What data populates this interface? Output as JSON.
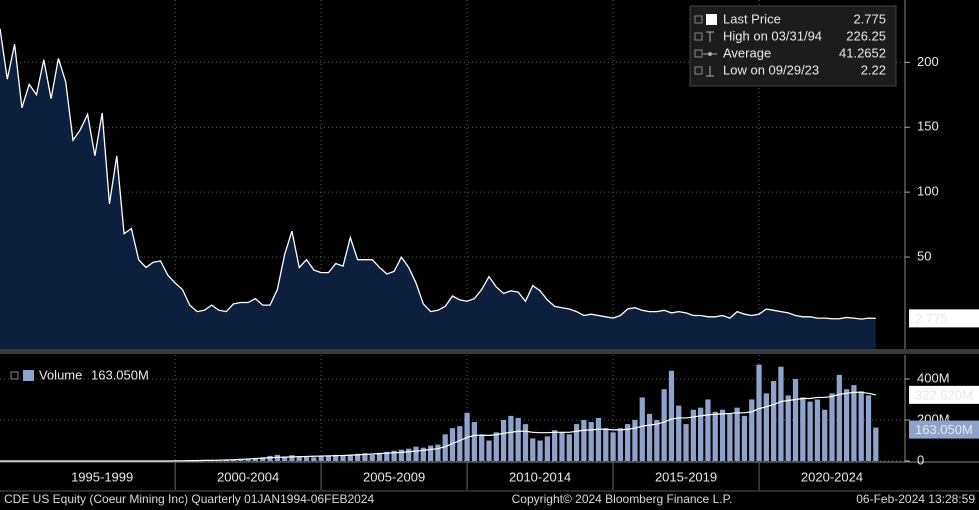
{
  "chart_data": {
    "type": "area",
    "footer": {
      "left": "CDE US Equity (Coeur Mining Inc)  Quarterly 01JAN1994-06FEB2024",
      "center": "Copyright© 2024 Bloomberg Finance L.P.",
      "right": "06-Feb-2024 13:28:59"
    },
    "legend": [
      {
        "name": "Last Price",
        "value": "2.775"
      },
      {
        "name": "High on 03/31/94",
        "value": "226.25"
      },
      {
        "name": "Average",
        "value": "41.2652"
      },
      {
        "name": "Low on 09/29/23",
        "value": "2.22"
      }
    ],
    "xlim": [
      1994,
      2025
    ],
    "xticks": [
      {
        "value": 1997.5,
        "label": "1995-1999"
      },
      {
        "value": 2002.5,
        "label": "2000-2004"
      },
      {
        "value": 2007.5,
        "label": "2005-2009"
      },
      {
        "value": 2012.5,
        "label": "2010-2014"
      },
      {
        "value": 2017.5,
        "label": "2015-2019"
      },
      {
        "value": 2022.5,
        "label": "2020-2024"
      }
    ],
    "ylim": [
      -20.8,
      248
    ],
    "yticks": [
      50,
      100,
      150,
      200
    ],
    "y2lim": [
      0,
      517
    ],
    "y2ticks": [
      {
        "value": 0,
        "label": "0"
      },
      {
        "value": 200,
        "label": "200M"
      },
      {
        "value": 400,
        "label": "400M"
      }
    ],
    "grid": true,
    "x": [
      1994,
      1994.25,
      1994.5,
      1994.75,
      1995,
      1995.25,
      1995.5,
      1995.75,
      1996,
      1996.25,
      1996.5,
      1996.75,
      1997,
      1997.25,
      1997.5,
      1997.75,
      1998,
      1998.25,
      1998.5,
      1998.75,
      1999,
      1999.25,
      1999.5,
      1999.75,
      2000,
      2000.25,
      2000.5,
      2000.75,
      2001,
      2001.25,
      2001.5,
      2001.75,
      2002,
      2002.25,
      2002.5,
      2002.75,
      2003,
      2003.25,
      2003.5,
      2003.75,
      2004,
      2004.25,
      2004.5,
      2004.75,
      2005,
      2005.25,
      2005.5,
      2005.75,
      2006,
      2006.25,
      2006.5,
      2006.75,
      2007,
      2007.25,
      2007.5,
      2007.75,
      2008,
      2008.25,
      2008.5,
      2008.75,
      2009,
      2009.25,
      2009.5,
      2009.75,
      2010,
      2010.25,
      2010.5,
      2010.75,
      2011,
      2011.25,
      2011.5,
      2011.75,
      2012,
      2012.25,
      2012.5,
      2012.75,
      2013,
      2013.25,
      2013.5,
      2013.75,
      2014,
      2014.25,
      2014.5,
      2014.75,
      2015,
      2015.25,
      2015.5,
      2015.75,
      2016,
      2016.25,
      2016.5,
      2016.75,
      2017,
      2017.25,
      2017.5,
      2017.75,
      2018,
      2018.25,
      2018.5,
      2018.75,
      2019,
      2019.25,
      2019.5,
      2019.75,
      2020,
      2020.25,
      2020.5,
      2020.75,
      2021,
      2021.25,
      2021.5,
      2021.75,
      2022,
      2022.25,
      2022.5,
      2022.75,
      2023,
      2023.25,
      2023.5,
      2023.75,
      2024
    ],
    "series": [
      {
        "name": "Last Price",
        "type": "area",
        "color": "#ffffff",
        "fill": "#0c1f3c",
        "last_label": "2.775",
        "values": [
          226,
          187,
          214,
          165,
          183,
          175,
          202,
          172,
          203,
          185,
          140,
          148,
          160,
          128,
          161,
          91,
          128,
          68,
          72,
          48,
          42,
          46,
          47,
          36,
          30,
          25,
          13,
          8,
          9,
          13,
          9,
          8,
          14,
          15,
          15,
          18,
          13,
          13,
          25,
          52,
          70,
          42,
          48,
          40,
          38,
          38,
          45,
          43,
          65,
          48,
          48,
          48,
          42,
          37,
          39,
          50,
          42,
          30,
          14,
          8,
          9,
          12,
          20,
          17,
          16,
          18,
          25,
          35,
          27,
          22,
          24,
          23,
          16,
          28,
          24,
          17,
          12,
          11,
          10,
          8,
          5,
          6,
          5,
          4,
          3,
          5,
          10,
          11,
          9,
          8,
          8,
          9,
          7,
          8,
          7,
          5,
          5,
          4,
          4,
          5,
          3,
          8,
          6,
          5,
          6,
          10,
          9,
          8,
          7,
          5,
          4,
          4,
          3,
          3,
          2.5,
          2.5,
          3.5,
          3,
          2.22,
          3,
          2.775
        ]
      },
      {
        "name": "Volume",
        "type": "bar",
        "axis": "y2",
        "color": "#8ea3cc",
        "last_label": "163.050M",
        "legend_value": "163.050M",
        "values": [
          0.2,
          0.2,
          0.2,
          0.2,
          0.2,
          0.2,
          0.2,
          0.2,
          0.2,
          0.2,
          0.2,
          0.2,
          0.2,
          0.2,
          0.2,
          0.2,
          0.2,
          0.2,
          0.2,
          0.2,
          0.2,
          0.2,
          0.2,
          0.2,
          1,
          1,
          2,
          2,
          3,
          4,
          5,
          6,
          8,
          10,
          12,
          15,
          18,
          25,
          30,
          22,
          28,
          24,
          20,
          18,
          22,
          26,
          30,
          28,
          32,
          35,
          38,
          30,
          40,
          45,
          50,
          55,
          60,
          70,
          65,
          75,
          80,
          130,
          160,
          170,
          235,
          190,
          130,
          100,
          140,
          200,
          220,
          210,
          180,
          110,
          100,
          120,
          150,
          140,
          130,
          180,
          200,
          190,
          210,
          160,
          140,
          160,
          180,
          200,
          310,
          230,
          200,
          350,
          440,
          270,
          180,
          250,
          260,
          300,
          240,
          250,
          230,
          260,
          220,
          300,
          470,
          330,
          390,
          460,
          320,
          400,
          310,
          290,
          300,
          250,
          330,
          420,
          350,
          370,
          340,
          320,
          163.05
        ]
      },
      {
        "name": "Volume Average",
        "type": "line",
        "axis": "y2",
        "color": "#ffffff",
        "last_label": "322.620M",
        "values": [
          0.2,
          0.2,
          0.2,
          0.2,
          0.2,
          0.2,
          0.2,
          0.2,
          0.2,
          0.2,
          0.2,
          0.2,
          0.2,
          0.2,
          0.2,
          0.2,
          0.2,
          0.2,
          0.2,
          0.2,
          0.2,
          0.2,
          0.2,
          0.2,
          1,
          1,
          2,
          2,
          3,
          3,
          4,
          5,
          6,
          8,
          10,
          12,
          14,
          16,
          18,
          19,
          20,
          21,
          22,
          23,
          24,
          25,
          26,
          27,
          28,
          30,
          32,
          34,
          36,
          38,
          40,
          42,
          45,
          48,
          52,
          56,
          60,
          70,
          85,
          100,
          115,
          125,
          125,
          125,
          128,
          135,
          140,
          145,
          145,
          140,
          138,
          138,
          140,
          140,
          140,
          145,
          150,
          152,
          155,
          155,
          152,
          152,
          155,
          160,
          170,
          175,
          180,
          190,
          205,
          210,
          210,
          215,
          220,
          225,
          228,
          230,
          232,
          235,
          235,
          240,
          255,
          265,
          275,
          290,
          295,
          300,
          305,
          305,
          310,
          310,
          315,
          325,
          330,
          335,
          335,
          330,
          322.62
        ]
      }
    ]
  }
}
